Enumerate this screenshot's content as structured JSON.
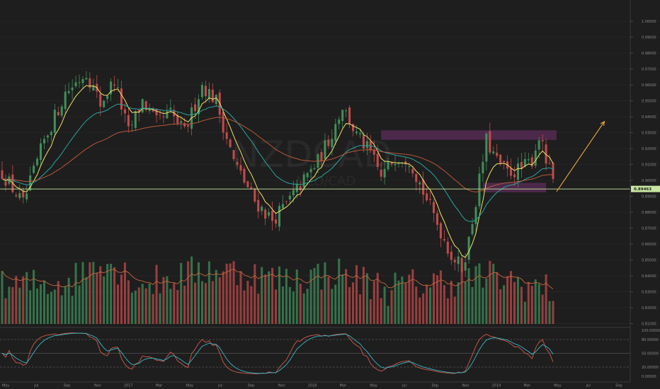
{
  "chart_data": {
    "type": "candlestick",
    "watermark": {
      "symbol": "NZDCAD",
      "subtitle": "NZD/CAD"
    },
    "price_axis": {
      "ticks": [
        "1.00000",
        "0.99000",
        "0.98000",
        "0.97000",
        "0.96000",
        "0.95000",
        "0.94000",
        "0.93000",
        "0.92000",
        "0.91000",
        "0.90000",
        "0.89000",
        "0.88000",
        "0.87000",
        "0.86000",
        "0.85000",
        "0.84000",
        "0.83000",
        "0.82000",
        "0.81000"
      ],
      "ylim": [
        0.8098,
        1.0045
      ]
    },
    "current_price": {
      "label": "0.89463",
      "value": 0.89463,
      "color": "#c8e6a0"
    },
    "time_axis": {
      "labels": [
        "May",
        "Jul",
        "Sep",
        "Nov",
        "2017",
        "Mar",
        "May",
        "Jul",
        "Sep",
        "Nov",
        "2018",
        "Mar",
        "May",
        "Jul",
        "Sep",
        "Nov",
        "2019",
        "Mar",
        "May",
        "Jul",
        "Sep"
      ]
    },
    "candles_weeks": 158,
    "price_path": [
      [
        0,
        0.905
      ],
      [
        6,
        0.885
      ],
      [
        12,
        0.925
      ],
      [
        18,
        0.955
      ],
      [
        24,
        0.968
      ],
      [
        28,
        0.948
      ],
      [
        32,
        0.963
      ],
      [
        36,
        0.93
      ],
      [
        40,
        0.95
      ],
      [
        44,
        0.936
      ],
      [
        48,
        0.942
      ],
      [
        52,
        0.93
      ],
      [
        57,
        0.96
      ],
      [
        61,
        0.95
      ],
      [
        66,
        0.912
      ],
      [
        72,
        0.887
      ],
      [
        77,
        0.875
      ],
      [
        81,
        0.885
      ],
      [
        86,
        0.9
      ],
      [
        90,
        0.912
      ],
      [
        94,
        0.93
      ],
      [
        97,
        0.947
      ],
      [
        101,
        0.928
      ],
      [
        105,
        0.917
      ],
      [
        108,
        0.902
      ],
      [
        112,
        0.915
      ],
      [
        116,
        0.914
      ],
      [
        120,
        0.893
      ],
      [
        124,
        0.873
      ],
      [
        128,
        0.853
      ],
      [
        131,
        0.845
      ],
      [
        133,
        0.862
      ],
      [
        136,
        0.9
      ],
      [
        138,
        0.925
      ],
      [
        141,
        0.912
      ],
      [
        144,
        0.905
      ],
      [
        148,
        0.907
      ],
      [
        151,
        0.913
      ],
      [
        153,
        0.928
      ],
      [
        155,
        0.912
      ],
      [
        157,
        0.9
      ],
      [
        158,
        0.894
      ]
    ],
    "volume_path": [
      [
        0,
        0.45
      ],
      [
        20,
        0.55
      ],
      [
        28,
        0.85
      ],
      [
        40,
        0.5
      ],
      [
        60,
        0.7
      ],
      [
        80,
        0.55
      ],
      [
        95,
        0.65
      ],
      [
        110,
        0.45
      ],
      [
        128,
        0.55
      ],
      [
        140,
        0.6
      ],
      [
        158,
        0.4
      ]
    ],
    "indicators": {
      "ema_fast": {
        "color": "#f0e26a",
        "period": 6
      },
      "ema_mid": {
        "color": "#2aa4a0",
        "period": 22
      },
      "ema_slow": {
        "color": "#b8573a",
        "period": 55
      },
      "volume_ma": {
        "color": "#c0683c"
      }
    },
    "zones": [
      {
        "from": 0.9255,
        "to": 0.9315,
        "color": "#5c2d5a",
        "start_week": 108,
        "end_week": 158
      },
      {
        "from": 0.8925,
        "to": 0.8985,
        "color": "#5c2d5a",
        "start_week": 137,
        "end_week": 155
      }
    ],
    "projection": {
      "color": "#f0a63a",
      "from": [
        158,
        0.893
      ],
      "to": [
        170,
        0.937
      ]
    },
    "horizontal_line": {
      "value": 0.89463,
      "color": "#c8e6a0"
    },
    "stochastic": {
      "ticks": [
        "100.00000",
        "80.00000",
        "50.00000",
        "20.00000",
        "0.00000"
      ],
      "levels": [
        80,
        50,
        20
      ],
      "k_color": "#d15a4a",
      "d_color": "#3ab7c8"
    },
    "colors": {
      "up": "#3f8f5a",
      "down": "#c24a4a",
      "background": "#1e1e1e",
      "grid": "#262626"
    }
  }
}
